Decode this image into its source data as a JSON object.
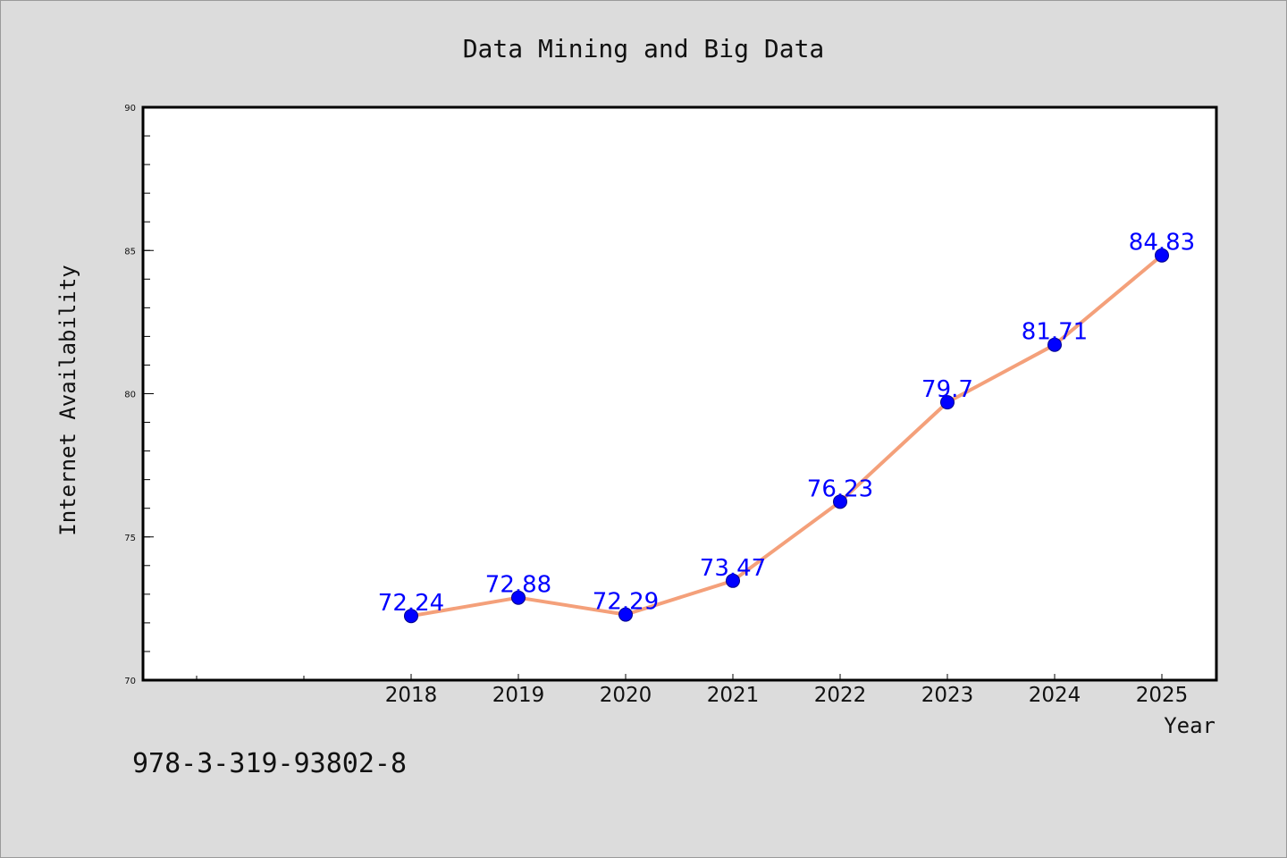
{
  "chart_data": {
    "type": "line",
    "title": "Data Mining and Big Data",
    "xlabel": "Year",
    "ylabel": "Internet Availability",
    "categories": [
      "2018",
      "2019",
      "2020",
      "2021",
      "2022",
      "2023",
      "2024",
      "2025"
    ],
    "series": [
      {
        "values": [
          72.24,
          72.88,
          72.29,
          73.47,
          76.23,
          79.7,
          81.71,
          84.83
        ]
      }
    ],
    "data_labels": [
      "72.24",
      "72.88",
      "72.29",
      "73.47",
      "76.23",
      "79.7",
      "81.71",
      "84.83"
    ],
    "ylim": [
      70,
      90
    ],
    "yticks": [
      70,
      75,
      80,
      85,
      90
    ],
    "grid": false,
    "legend": "none",
    "colors": {
      "line": "#f4a07a",
      "marker": "#0000ff",
      "marker_edge": "#00008b",
      "data_label": "#0000ff",
      "background": "#dcdcdc",
      "plot_background": "#ffffff",
      "axis": "#000000"
    }
  },
  "footer": {
    "isbn": "978-3-319-93802-8"
  }
}
